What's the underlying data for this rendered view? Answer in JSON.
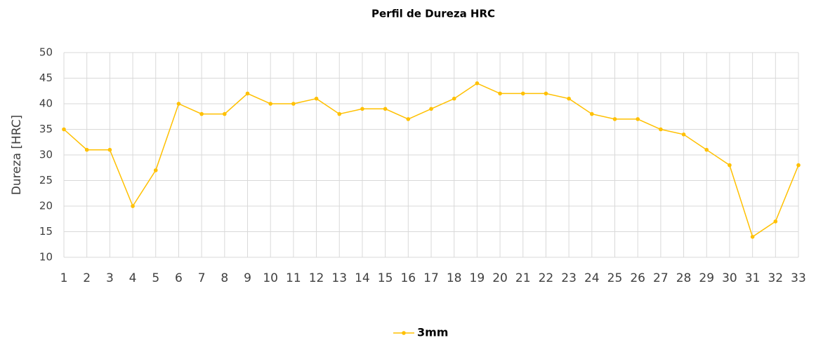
{
  "chart_data": {
    "type": "line",
    "title": "Perfil de Dureza HRC",
    "y_label": "Dureza [HRC]",
    "x": [
      1,
      2,
      3,
      4,
      5,
      6,
      7,
      8,
      9,
      10,
      11,
      12,
      13,
      14,
      15,
      16,
      17,
      18,
      19,
      20,
      21,
      22,
      23,
      24,
      25,
      26,
      27,
      28,
      29,
      30,
      31,
      32,
      33
    ],
    "xlim": [
      1,
      33
    ],
    "xticks": [
      1,
      2,
      3,
      4,
      5,
      6,
      7,
      8,
      9,
      10,
      11,
      12,
      13,
      14,
      15,
      16,
      17,
      18,
      19,
      20,
      21,
      22,
      23,
      24,
      25,
      26,
      27,
      28,
      29,
      30,
      31,
      32,
      33
    ],
    "series": [
      {
        "name": "3mm",
        "color": "#ffc000",
        "values": [
          35,
          31,
          31,
          20,
          27,
          40,
          38,
          38,
          42,
          40,
          40,
          41,
          38,
          39,
          39,
          37,
          39,
          41,
          44,
          42,
          42,
          42,
          41,
          38,
          37,
          37,
          35,
          34,
          31,
          28,
          14,
          17,
          28
        ]
      }
    ],
    "ylim": [
      10,
      50
    ],
    "yticks": [
      10,
      15,
      20,
      25,
      30,
      35,
      40,
      45,
      50
    ],
    "grid": true,
    "legend": "bottom"
  }
}
